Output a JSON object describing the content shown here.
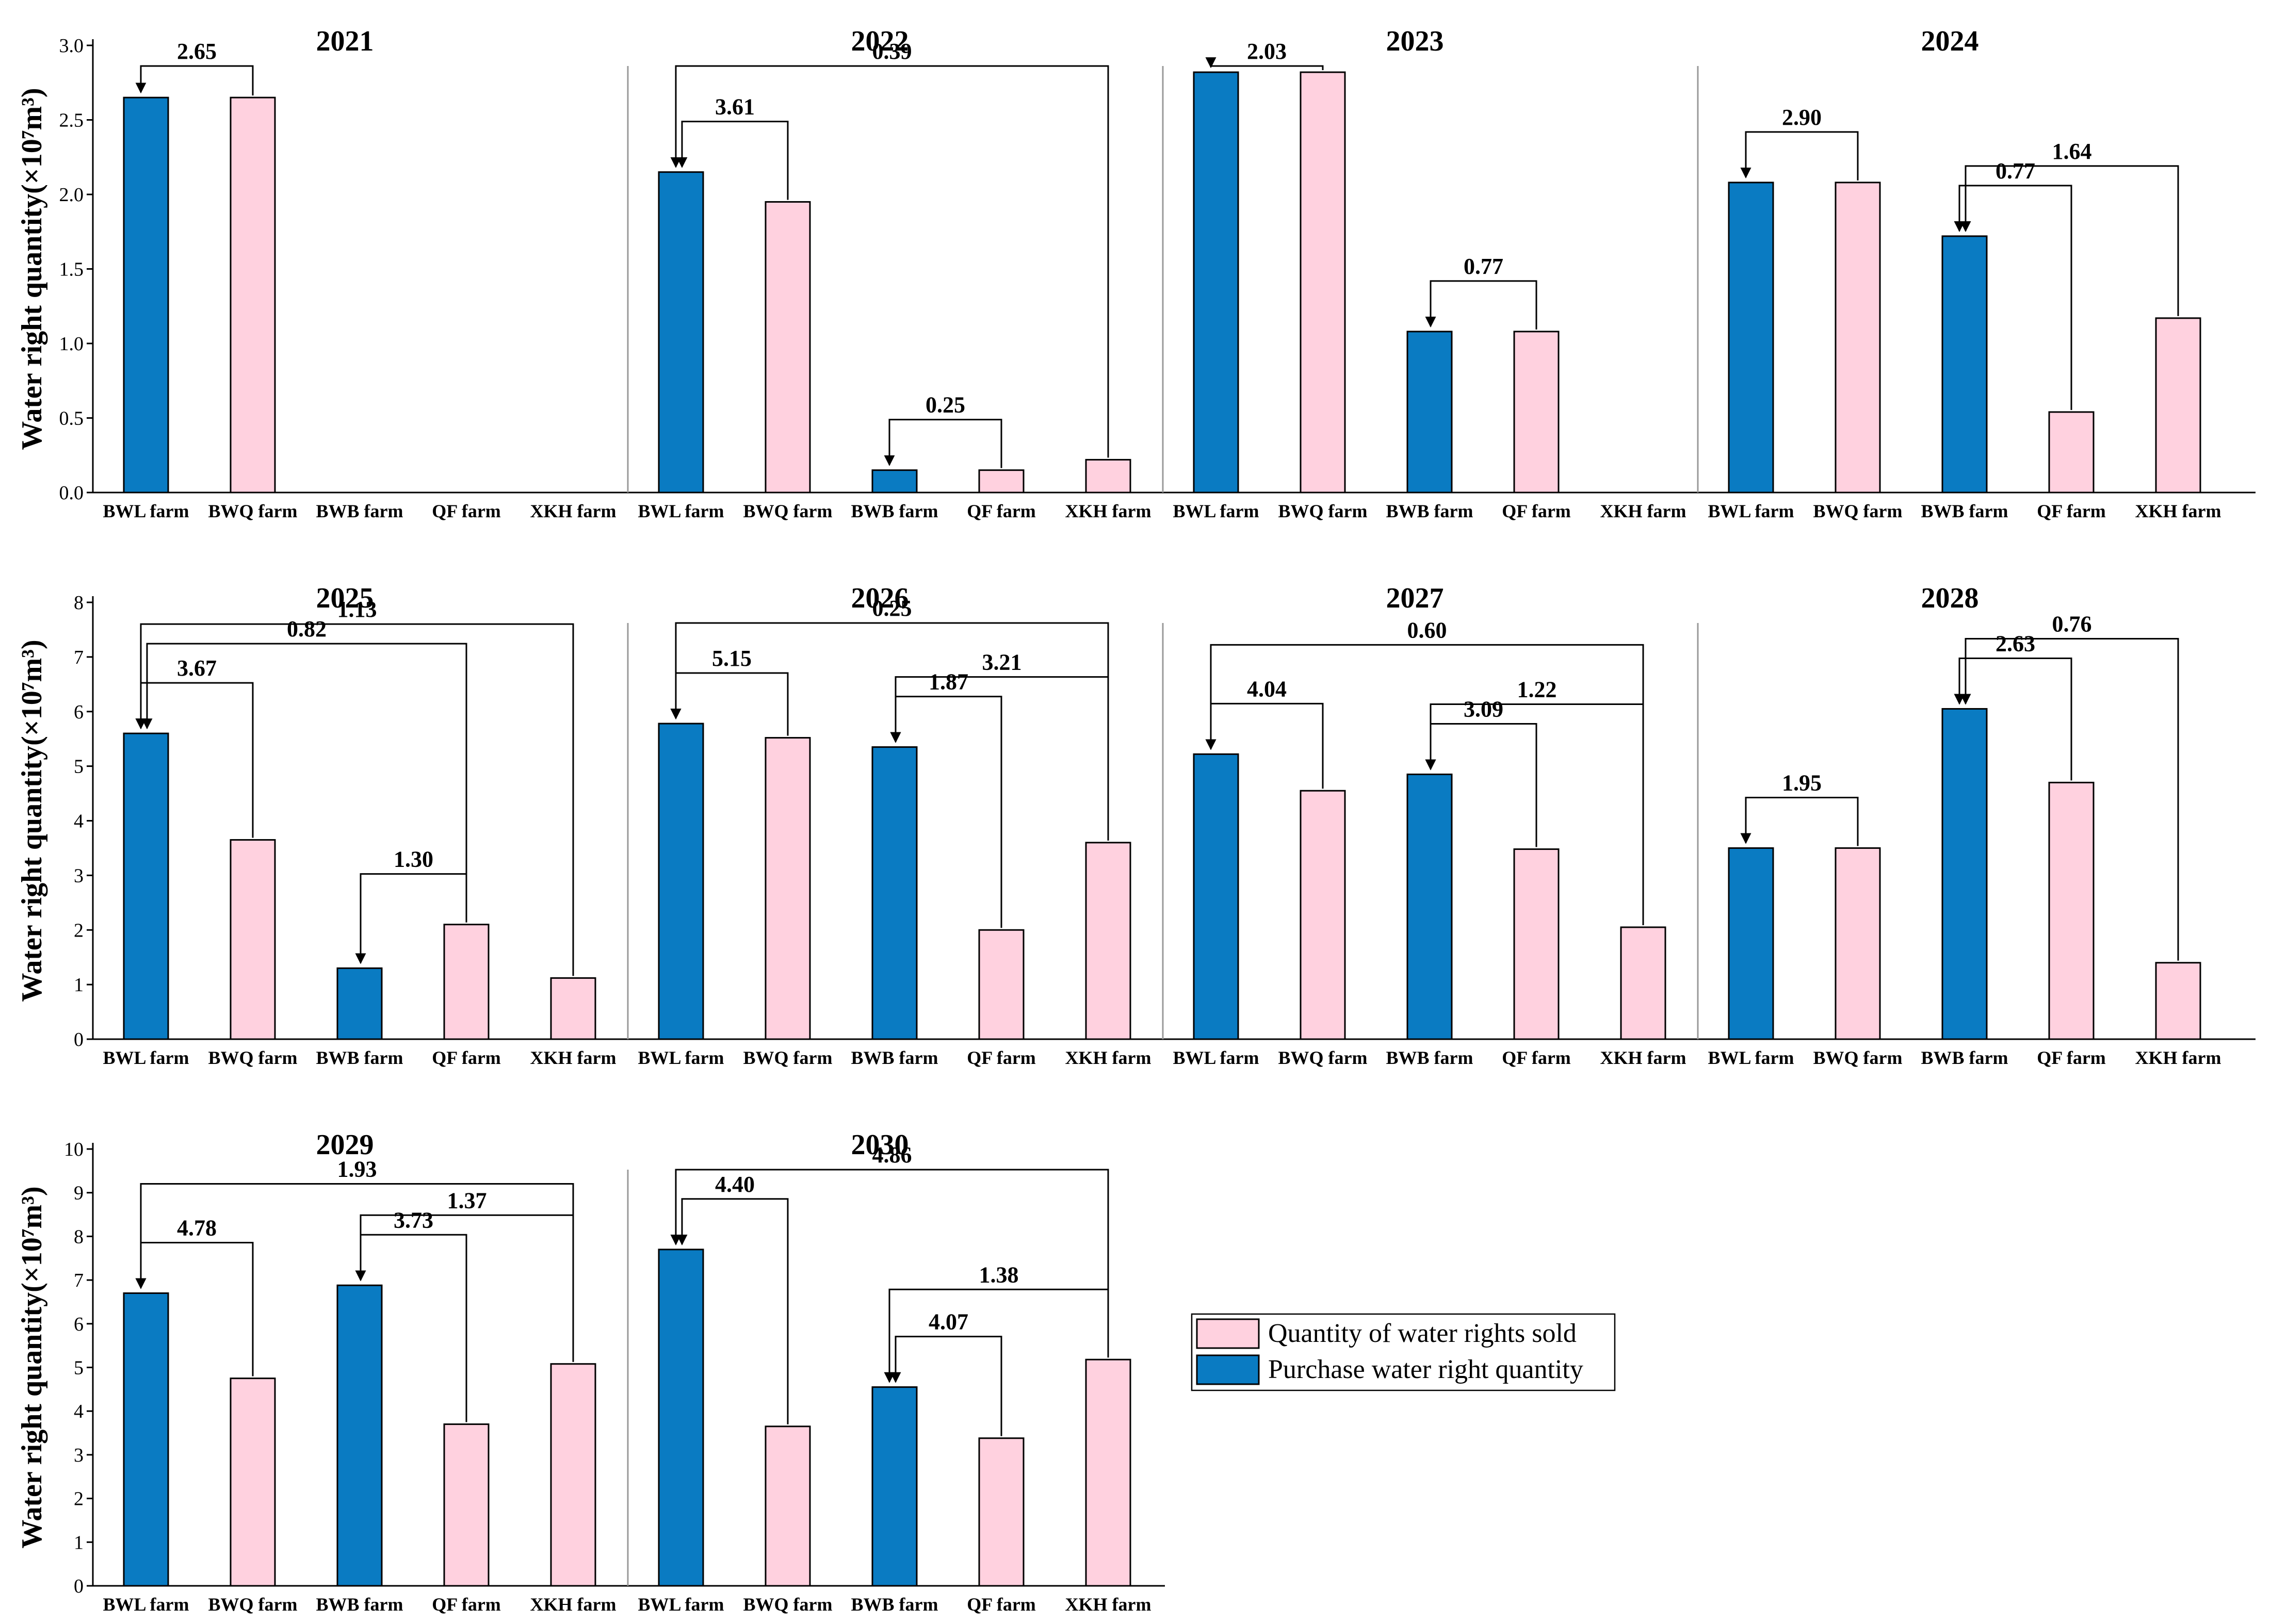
{
  "colors": {
    "purchase": "#0A7BC2",
    "sold": "#FFD1DF"
  },
  "legend": {
    "sold_label": "Quantity of water rights sold",
    "purchase_label": "Purchase water right quantity"
  },
  "chart_data": [
    {
      "type": "bar",
      "ylabel": "Water right quantity(×10⁷m³)",
      "ylim": [
        0,
        3.0
      ],
      "yticks": [
        "0.0",
        "0.5",
        "1.0",
        "1.5",
        "2.0",
        "2.5",
        "3.0"
      ],
      "categories": [
        "BWL farm",
        "BWQ farm",
        "BWB farm",
        "QF farm",
        "XKH farm"
      ],
      "panels": [
        {
          "year": "2021",
          "values": [
            2.65,
            2.65,
            0,
            0,
            0
          ],
          "series": [
            "purchase",
            "sold",
            "purchase",
            "sold",
            "sold"
          ],
          "annotations": [
            {
              "label": "2.65",
              "from": 1,
              "to": [
                0
              ]
            }
          ]
        },
        {
          "year": "2022",
          "values": [
            2.15,
            1.95,
            0.15,
            0.15,
            0.22
          ],
          "series": [
            "purchase",
            "sold",
            "purchase",
            "sold",
            "sold"
          ],
          "annotations": [
            {
              "label": "0.39",
              "from": 4,
              "to": [
                0
              ]
            },
            {
              "label": "3.61",
              "from": 1,
              "to": [
                0
              ]
            },
            {
              "label": "0.25",
              "from": 3,
              "to": [
                2
              ]
            }
          ]
        },
        {
          "year": "2023",
          "values": [
            2.82,
            2.82,
            1.08,
            1.08,
            0
          ],
          "series": [
            "purchase",
            "sold",
            "purchase",
            "sold",
            "sold"
          ],
          "annotations": [
            {
              "label": "2.03",
              "from": 1,
              "to": [
                0
              ]
            },
            {
              "label": "0.77",
              "from": 3,
              "to": [
                2
              ]
            }
          ]
        },
        {
          "year": "2024",
          "values": [
            2.08,
            2.08,
            1.72,
            0.54,
            1.17
          ],
          "series": [
            "purchase",
            "sold",
            "purchase",
            "sold",
            "sold"
          ],
          "annotations": [
            {
              "label": "2.90",
              "from": 1,
              "to": [
                0
              ]
            },
            {
              "label": "1.64",
              "from": 4,
              "to": [
                2
              ]
            },
            {
              "label": "0.77",
              "from": 3,
              "to": [
                2
              ]
            }
          ]
        }
      ]
    },
    {
      "type": "bar",
      "ylabel": "Water right quantity(×10⁷m³)",
      "ylim": [
        0,
        8
      ],
      "yticks": [
        "0",
        "1",
        "2",
        "3",
        "4",
        "5",
        "6",
        "7",
        "8"
      ],
      "categories": [
        "BWL farm",
        "BWQ farm",
        "BWB farm",
        "QF farm",
        "XKH farm"
      ],
      "panels": [
        {
          "year": "2025",
          "values": [
            5.6,
            3.65,
            1.3,
            2.1,
            1.12
          ],
          "series": [
            "purchase",
            "sold",
            "purchase",
            "sold",
            "sold"
          ],
          "annotations": [
            {
              "label": "1.13",
              "from": 4,
              "to": [
                0
              ]
            },
            {
              "label": "0.82",
              "from": 3,
              "to": [
                0
              ]
            },
            {
              "label": "3.67",
              "from": 1,
              "to": [
                0
              ]
            },
            {
              "label": "1.30",
              "from": 3,
              "to": [
                2
              ]
            }
          ]
        },
        {
          "year": "2026",
          "values": [
            5.78,
            5.52,
            5.35,
            2.0,
            3.6
          ],
          "series": [
            "purchase",
            "sold",
            "purchase",
            "sold",
            "sold"
          ],
          "annotations": [
            {
              "label": "0.25",
              "from": 4,
              "to": [
                0
              ]
            },
            {
              "label": "3.21",
              "from": 4,
              "to": [
                2
              ]
            },
            {
              "label": "5.15",
              "from": 1,
              "to": [
                0
              ]
            },
            {
              "label": "1.87",
              "from": 3,
              "to": [
                2
              ]
            }
          ]
        },
        {
          "year": "2027",
          "values": [
            5.22,
            4.55,
            4.85,
            3.48,
            2.05
          ],
          "series": [
            "purchase",
            "sold",
            "purchase",
            "sold",
            "sold"
          ],
          "annotations": [
            {
              "label": "0.60",
              "from": 4,
              "to": [
                0
              ]
            },
            {
              "label": "1.22",
              "from": 4,
              "to": [
                2
              ]
            },
            {
              "label": "4.04",
              "from": 1,
              "to": [
                0
              ]
            },
            {
              "label": "3.09",
              "from": 3,
              "to": [
                2
              ]
            }
          ]
        },
        {
          "year": "2028",
          "values": [
            3.5,
            3.5,
            6.05,
            4.7,
            1.4
          ],
          "series": [
            "purchase",
            "sold",
            "purchase",
            "sold",
            "sold"
          ],
          "annotations": [
            {
              "label": "1.95",
              "from": 1,
              "to": [
                0
              ]
            },
            {
              "label": "0.76",
              "from": 4,
              "to": [
                2
              ]
            },
            {
              "label": "2.63",
              "from": 3,
              "to": [
                2
              ]
            }
          ]
        }
      ]
    },
    {
      "type": "bar",
      "ylabel": "Water right quantity(×10⁷m³)",
      "ylim": [
        0,
        10
      ],
      "yticks": [
        "0",
        "1",
        "2",
        "3",
        "4",
        "5",
        "6",
        "7",
        "8",
        "9",
        "10"
      ],
      "categories": [
        "BWL farm",
        "BWQ farm",
        "BWB farm",
        "QF farm",
        "XKH farm"
      ],
      "panels": [
        {
          "year": "2029",
          "values": [
            6.7,
            4.75,
            6.88,
            3.7,
            5.08
          ],
          "series": [
            "purchase",
            "sold",
            "purchase",
            "sold",
            "sold"
          ],
          "annotations": [
            {
              "label": "1.93",
              "from": 4,
              "to": [
                0
              ]
            },
            {
              "label": "1.37",
              "from": 4,
              "to": [
                2
              ]
            },
            {
              "label": "4.78",
              "from": 1,
              "to": [
                0
              ]
            },
            {
              "label": "3.73",
              "from": 3,
              "to": [
                2
              ]
            }
          ]
        },
        {
          "year": "2030",
          "values": [
            7.7,
            3.65,
            4.55,
            3.38,
            5.18
          ],
          "series": [
            "purchase",
            "sold",
            "purchase",
            "sold",
            "sold"
          ],
          "annotations": [
            {
              "label": "4.86",
              "from": 4,
              "to": [
                0
              ]
            },
            {
              "label": "4.40",
              "from": 1,
              "to": [
                0
              ]
            },
            {
              "label": "1.38",
              "from": 4,
              "to": [
                2
              ]
            },
            {
              "label": "4.07",
              "from": 3,
              "to": [
                2
              ]
            }
          ]
        }
      ]
    }
  ]
}
